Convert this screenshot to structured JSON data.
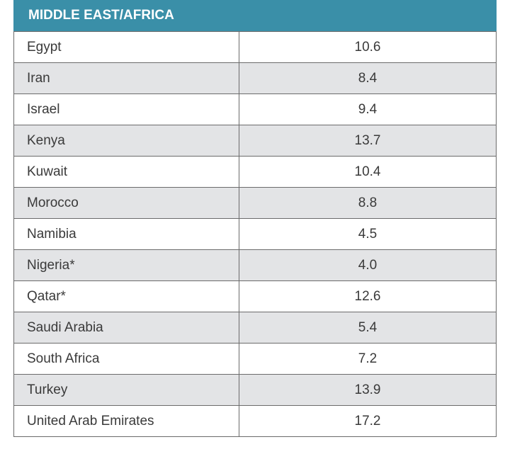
{
  "header": {
    "title": "MIDDLE EAST/AFRICA"
  },
  "rows": [
    {
      "country": "Egypt",
      "value": "10.6"
    },
    {
      "country": "Iran",
      "value": "8.4"
    },
    {
      "country": "Israel",
      "value": "9.4"
    },
    {
      "country": "Kenya",
      "value": "13.7"
    },
    {
      "country": "Kuwait",
      "value": "10.4"
    },
    {
      "country": "Morocco",
      "value": "8.8"
    },
    {
      "country": "Namibia",
      "value": "4.5"
    },
    {
      "country": "Nigeria*",
      "value": "4.0"
    },
    {
      "country": "Qatar*",
      "value": "12.6"
    },
    {
      "country": "Saudi Arabia",
      "value": "5.4"
    },
    {
      "country": "South Africa",
      "value": "7.2"
    },
    {
      "country": "Turkey",
      "value": "13.9"
    },
    {
      "country": "United Arab Emirates",
      "value": "17.2"
    }
  ],
  "colors": {
    "header_bg": "#3a8fa8",
    "header_text": "#ffffff",
    "shaded_row": "#e3e4e6",
    "plain_row": "#ffffff",
    "grid": "#6b6b6b"
  }
}
